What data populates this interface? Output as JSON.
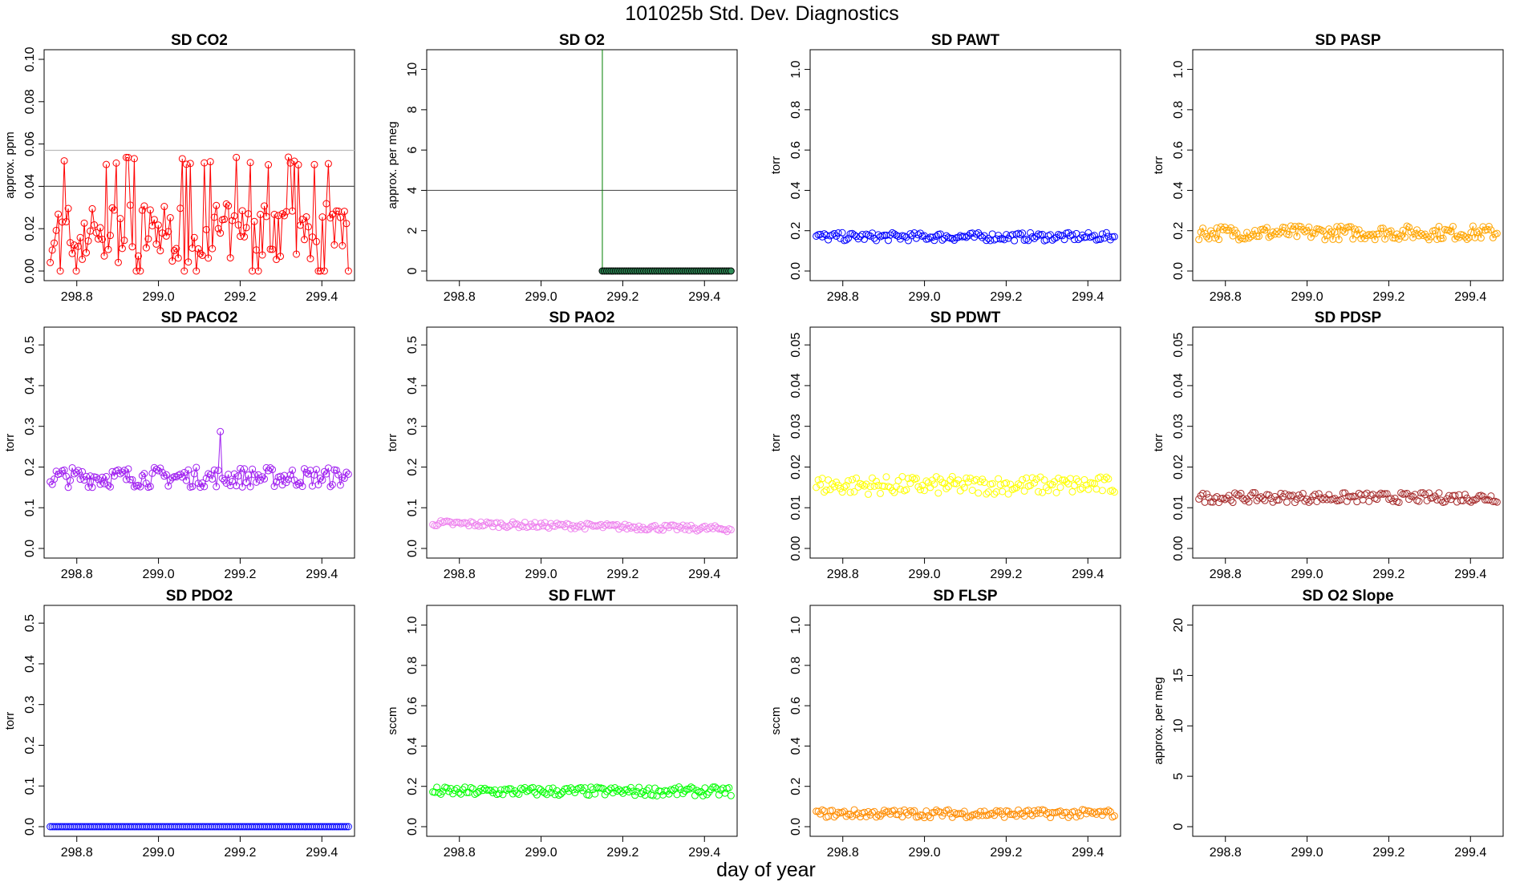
{
  "page": {
    "title": "101025b   Std. Dev. Diagnostics",
    "xlabel": "day of year"
  },
  "chart_data": [
    {
      "type": "scatter",
      "title": "SD CO2",
      "ylabel": "approx. ppm",
      "color": "#ff0000",
      "xlim": [
        298.72,
        299.48
      ],
      "ylim": [
        0,
        0.1
      ],
      "yticks": [
        "0.00",
        "0.02",
        "0.04",
        "0.06",
        "0.08",
        "0.10"
      ],
      "ytick_values": [
        0,
        0.02,
        0.04,
        0.06,
        0.08,
        0.1
      ],
      "xticks": [
        "298.8",
        "299.0",
        "299.2",
        "299.4"
      ],
      "xtick_values": [
        298.8,
        299.0,
        299.2,
        299.4
      ],
      "hlines": [
        {
          "y": 0.04,
          "color": "#555555"
        },
        {
          "y": 0.057,
          "color": "#bbbbbb"
        }
      ],
      "lines": true,
      "series": {
        "x_start": 298.735,
        "x_end": 299.465,
        "n": 150,
        "base": 0.018,
        "noise": 0.014,
        "spikes": 0.05,
        "zeros": true
      }
    },
    {
      "type": "scatter",
      "title": "SD O2",
      "ylabel": "approx. per meg",
      "color": "#000000",
      "xlim": [
        298.72,
        299.48
      ],
      "ylim": [
        0,
        10.5
      ],
      "yticks": [
        "0",
        "2",
        "4",
        "6",
        "8",
        "10"
      ],
      "ytick_values": [
        0,
        2,
        4,
        6,
        8,
        10
      ],
      "xticks": [
        "298.8",
        "299.0",
        "299.2",
        "299.4"
      ],
      "xtick_values": [
        298.8,
        299.0,
        299.2,
        299.4
      ],
      "hlines": [
        {
          "y": 4,
          "color": "#555555"
        }
      ],
      "vline": {
        "x": 299.15,
        "color": "#008000"
      },
      "marker_fill": "#2e8b57",
      "series": {
        "x_start": 299.15,
        "x_end": 299.465,
        "n": 60,
        "base": 0,
        "noise": 0
      }
    },
    {
      "type": "scatter",
      "title": "SD PAWT",
      "ylabel": "torr",
      "color": "#0000ff",
      "xlim": [
        298.72,
        299.48
      ],
      "ylim": [
        0,
        1.05
      ],
      "yticks": [
        "0.0",
        "0.2",
        "0.4",
        "0.6",
        "0.8",
        "1.0"
      ],
      "ytick_values": [
        0,
        0.2,
        0.4,
        0.6,
        0.8,
        1.0
      ],
      "xticks": [
        "298.8",
        "299.0",
        "299.2",
        "299.4"
      ],
      "xtick_values": [
        298.8,
        299.0,
        299.2,
        299.4
      ],
      "series": {
        "x_start": 298.735,
        "x_end": 299.465,
        "n": 150,
        "base": 0.17,
        "noise": 0.02
      }
    },
    {
      "type": "scatter",
      "title": "SD PASP",
      "ylabel": "torr",
      "color": "#ffa500",
      "xlim": [
        298.72,
        299.48
      ],
      "ylim": [
        0,
        1.05
      ],
      "yticks": [
        "0.0",
        "0.2",
        "0.4",
        "0.6",
        "0.8",
        "1.0"
      ],
      "ytick_values": [
        0,
        0.2,
        0.4,
        0.6,
        0.8,
        1.0
      ],
      "xticks": [
        "298.8",
        "299.0",
        "299.2",
        "299.4"
      ],
      "xtick_values": [
        298.8,
        299.0,
        299.2,
        299.4
      ],
      "lines": true,
      "series": {
        "x_start": 298.735,
        "x_end": 299.465,
        "n": 150,
        "base": 0.19,
        "noise": 0.035
      }
    },
    {
      "type": "scatter",
      "title": "SD PACO2",
      "ylabel": "torr",
      "color": "#a020f0",
      "xlim": [
        298.72,
        299.48
      ],
      "ylim": [
        0,
        0.52
      ],
      "yticks": [
        "0.0",
        "0.1",
        "0.2",
        "0.3",
        "0.4",
        "0.5"
      ],
      "ytick_values": [
        0,
        0.1,
        0.2,
        0.3,
        0.4,
        0.5
      ],
      "xticks": [
        "298.8",
        "299.0",
        "299.2",
        "299.4"
      ],
      "xtick_values": [
        298.8,
        299.0,
        299.2,
        299.4
      ],
      "lines": true,
      "series": {
        "x_start": 298.735,
        "x_end": 299.465,
        "n": 150,
        "base": 0.175,
        "noise": 0.025,
        "peak": {
          "x": 299.15,
          "y": 0.287
        }
      }
    },
    {
      "type": "scatter",
      "title": "SD PAO2",
      "ylabel": "torr",
      "color": "#ee82ee",
      "xlim": [
        298.72,
        299.48
      ],
      "ylim": [
        0,
        0.52
      ],
      "yticks": [
        "0.0",
        "0.1",
        "0.2",
        "0.3",
        "0.4",
        "0.5"
      ],
      "ytick_values": [
        0,
        0.1,
        0.2,
        0.3,
        0.4,
        0.5
      ],
      "xticks": [
        "298.8",
        "299.0",
        "299.2",
        "299.4"
      ],
      "xtick_values": [
        298.8,
        299.0,
        299.2,
        299.4
      ],
      "series": {
        "x_start": 298.735,
        "x_end": 299.465,
        "n": 150,
        "base": 0.062,
        "noise": 0.007,
        "trend": -0.014
      }
    },
    {
      "type": "scatter",
      "title": "SD PDWT",
      "ylabel": "torr",
      "color": "#ffff00",
      "xlim": [
        298.72,
        299.48
      ],
      "ylim": [
        0,
        0.052
      ],
      "yticks": [
        "0.00",
        "0.01",
        "0.02",
        "0.03",
        "0.04",
        "0.05"
      ],
      "ytick_values": [
        0,
        0.01,
        0.02,
        0.03,
        0.04,
        0.05
      ],
      "xticks": [
        "298.8",
        "299.0",
        "299.2",
        "299.4"
      ],
      "xtick_values": [
        298.8,
        299.0,
        299.2,
        299.4
      ],
      "series": {
        "x_start": 298.735,
        "x_end": 299.465,
        "n": 150,
        "base": 0.0155,
        "noise": 0.0022
      }
    },
    {
      "type": "scatter",
      "title": "SD PDSP",
      "ylabel": "torr",
      "color": "#a52a2a",
      "xlim": [
        298.72,
        299.48
      ],
      "ylim": [
        0,
        0.052
      ],
      "yticks": [
        "0.00",
        "0.01",
        "0.02",
        "0.03",
        "0.04",
        "0.05"
      ],
      "ytick_values": [
        0,
        0.01,
        0.02,
        0.03,
        0.04,
        0.05
      ],
      "xticks": [
        "298.8",
        "299.0",
        "299.2",
        "299.4"
      ],
      "xtick_values": [
        298.8,
        299.0,
        299.2,
        299.4
      ],
      "series": {
        "x_start": 298.735,
        "x_end": 299.465,
        "n": 150,
        "base": 0.0125,
        "noise": 0.0012
      }
    },
    {
      "type": "scatter",
      "title": "SD PDO2",
      "ylabel": "torr",
      "color": "#0000ff",
      "xlim": [
        298.72,
        299.48
      ],
      "ylim": [
        0,
        0.52
      ],
      "yticks": [
        "0.0",
        "0.1",
        "0.2",
        "0.3",
        "0.4",
        "0.5"
      ],
      "ytick_values": [
        0,
        0.1,
        0.2,
        0.3,
        0.4,
        0.5
      ],
      "xticks": [
        "298.8",
        "299.0",
        "299.2",
        "299.4"
      ],
      "xtick_values": [
        298.8,
        299.0,
        299.2,
        299.4
      ],
      "series": {
        "x_start": 298.735,
        "x_end": 299.465,
        "n": 150,
        "base": 0,
        "noise": 0
      }
    },
    {
      "type": "scatter",
      "title": "SD FLWT",
      "ylabel": "sccm",
      "color": "#00ff00",
      "xlim": [
        298.72,
        299.48
      ],
      "ylim": [
        0,
        1.05
      ],
      "yticks": [
        "0.0",
        "0.2",
        "0.4",
        "0.6",
        "0.8",
        "1.0"
      ],
      "ytick_values": [
        0,
        0.2,
        0.4,
        0.6,
        0.8,
        1.0
      ],
      "xticks": [
        "298.8",
        "299.0",
        "299.2",
        "299.4"
      ],
      "xtick_values": [
        298.8,
        299.0,
        299.2,
        299.4
      ],
      "series": {
        "x_start": 298.735,
        "x_end": 299.465,
        "n": 150,
        "base": 0.175,
        "noise": 0.022
      }
    },
    {
      "type": "scatter",
      "title": "SD FLSP",
      "ylabel": "sccm",
      "color": "#ff8c00",
      "xlim": [
        298.72,
        299.48
      ],
      "ylim": [
        0,
        1.05
      ],
      "yticks": [
        "0.0",
        "0.2",
        "0.4",
        "0.6",
        "0.8",
        "1.0"
      ],
      "ytick_values": [
        0,
        0.2,
        0.4,
        0.6,
        0.8,
        1.0
      ],
      "xticks": [
        "298.8",
        "299.0",
        "299.2",
        "299.4"
      ],
      "xtick_values": [
        298.8,
        299.0,
        299.2,
        299.4
      ],
      "series": {
        "x_start": 298.735,
        "x_end": 299.465,
        "n": 150,
        "base": 0.065,
        "noise": 0.02
      }
    },
    {
      "type": "scatter",
      "title": "SD O2 Slope",
      "ylabel": "approx. per meg",
      "color": "#000000",
      "xlim": [
        298.72,
        299.48
      ],
      "ylim": [
        0,
        21
      ],
      "yticks": [
        "0",
        "5",
        "10",
        "15",
        "20"
      ],
      "ytick_values": [
        0,
        5,
        10,
        15,
        20
      ],
      "xticks": [
        "298.8",
        "299.0",
        "299.2",
        "299.4"
      ],
      "xtick_values": [
        298.8,
        299.0,
        299.2,
        299.4
      ],
      "series": null
    }
  ]
}
